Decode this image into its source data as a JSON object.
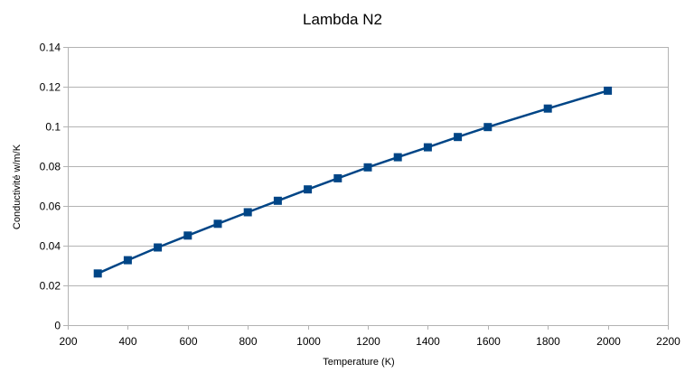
{
  "chart_data": {
    "type": "line",
    "title": "Lambda N2",
    "xlabel": "Temperature (K)",
    "ylabel": "Conductivité w/m/K",
    "xlim": [
      200,
      2200
    ],
    "ylim": [
      0,
      0.14
    ],
    "x_ticks": [
      "200",
      "400",
      "600",
      "800",
      "1000",
      "1200",
      "1400",
      "1600",
      "1800",
      "2000",
      "2200"
    ],
    "y_ticks": [
      "0",
      "0.02",
      "0.04",
      "0.06",
      "0.08",
      "0.1",
      "0.12",
      "0.14"
    ],
    "grid": "horizontal",
    "legend": "none",
    "series": [
      {
        "color": "#004586",
        "marker": "square",
        "x": [
          300,
          400,
          500,
          600,
          700,
          800,
          900,
          1000,
          1100,
          1200,
          1300,
          1400,
          1500,
          1600,
          1800,
          2000
        ],
        "y": [
          0.026,
          0.0327,
          0.0391,
          0.0451,
          0.051,
          0.0568,
          0.0626,
          0.0683,
          0.0739,
          0.0794,
          0.0845,
          0.0895,
          0.0947,
          0.0997,
          0.109,
          0.118
        ]
      }
    ]
  }
}
